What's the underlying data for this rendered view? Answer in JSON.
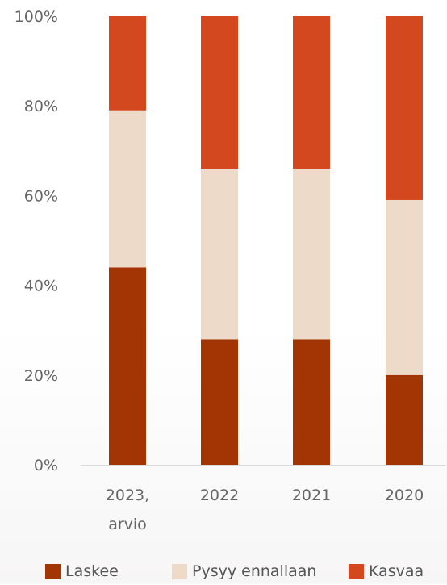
{
  "chart_data": {
    "type": "bar",
    "stacked": true,
    "categories": [
      [
        "2023,",
        "arvio"
      ],
      [
        "2022"
      ],
      [
        "2021"
      ],
      [
        "2020"
      ]
    ],
    "series": [
      {
        "name": "Laskee",
        "color": "#a33403",
        "values": [
          44,
          28,
          28,
          20
        ]
      },
      {
        "name": "Pysyy ennallaan",
        "color": "#eedac8",
        "values": [
          35,
          38,
          38,
          39
        ]
      },
      {
        "name": "Kasvaa",
        "color": "#d3481e",
        "values": [
          21,
          34,
          34,
          41
        ]
      }
    ],
    "ylim": [
      0,
      100
    ],
    "yticks": [
      "0%",
      "20%",
      "40%",
      "60%",
      "80%",
      "100%"
    ],
    "grid": false,
    "legend_position": "bottom",
    "title": "",
    "xlabel": "",
    "ylabel": ""
  }
}
